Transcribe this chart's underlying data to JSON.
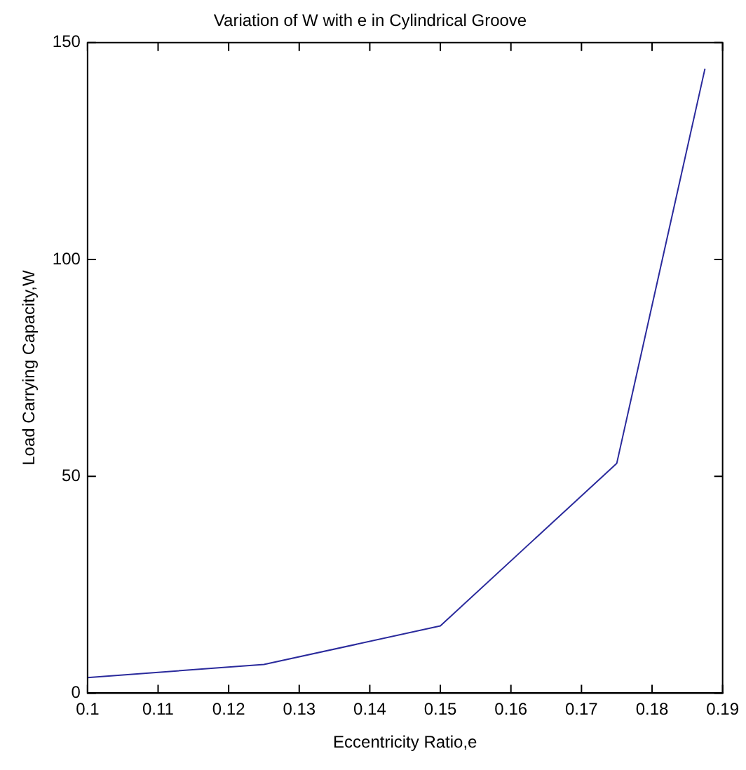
{
  "chart_data": {
    "type": "line",
    "title": "Variation of W with e in Cylindrical Groove",
    "xlabel": "Eccentricity Ratio,e",
    "ylabel": "Load Carrying Capacity,W",
    "x": [
      0.1,
      0.125,
      0.15,
      0.175,
      0.1875
    ],
    "series": [
      {
        "color": "#2a2a9c",
        "values": [
          3.6,
          6.6,
          15.5,
          53,
          144
        ]
      }
    ],
    "xlim": [
      0.1,
      0.19
    ],
    "xticks": [
      0.1,
      0.11,
      0.12,
      0.13,
      0.14,
      0.15,
      0.16,
      0.17,
      0.18,
      0.19
    ],
    "ylim": [
      0,
      150
    ],
    "yticks": [
      0,
      50,
      100,
      150
    ],
    "grid": false,
    "legend": false,
    "marker": "none",
    "line_style": "solid"
  }
}
